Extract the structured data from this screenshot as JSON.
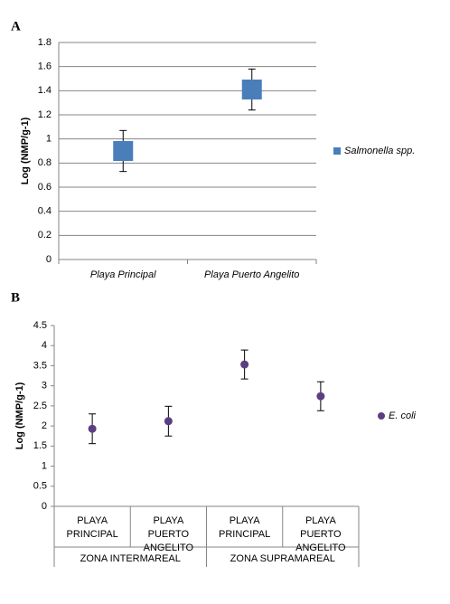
{
  "chart_data": [
    {
      "type": "scatter",
      "panel": "A",
      "y_label": "Log (NMP/g-1)",
      "categories": [
        "Playa Principal",
        "Playa Puerto Angelito"
      ],
      "series": [
        {
          "name": "Salmonella spp.",
          "color": "#4a7ebb",
          "marker": "square",
          "values": [
            0.9,
            1.41
          ],
          "errors": [
            0.17,
            0.17
          ]
        }
      ],
      "ylim": [
        0,
        1.8
      ],
      "yticks": [
        0,
        0.2,
        0.4,
        0.6,
        0.8,
        1,
        1.2,
        1.4,
        1.6,
        1.8
      ],
      "grid": true,
      "legend": "right"
    },
    {
      "type": "scatter",
      "panel": "B",
      "y_label": "Log (NMP/g-1)",
      "categories": [
        "PLAYA PRINCIPAL",
        "PLAYA PUERTO ANGELITO",
        "PLAYA PRINCIPAL",
        "PLAYA PUERTO ANGELITO"
      ],
      "group_labels": [
        "ZONA INTERMAREAL",
        "ZONA SUPRAMAREAL"
      ],
      "series": [
        {
          "name": "E. coli",
          "color": "#5b3f82",
          "marker": "circle",
          "values": [
            1.93,
            2.12,
            3.53,
            2.74
          ],
          "errors": [
            0.37,
            0.37,
            0.36,
            0.36
          ]
        }
      ],
      "ylim": [
        0,
        4.5
      ],
      "yticks": [
        0,
        0.5,
        1,
        1.5,
        2,
        2.5,
        3,
        3.5,
        4,
        4.5
      ],
      "grid": false,
      "legend": "right"
    }
  ]
}
